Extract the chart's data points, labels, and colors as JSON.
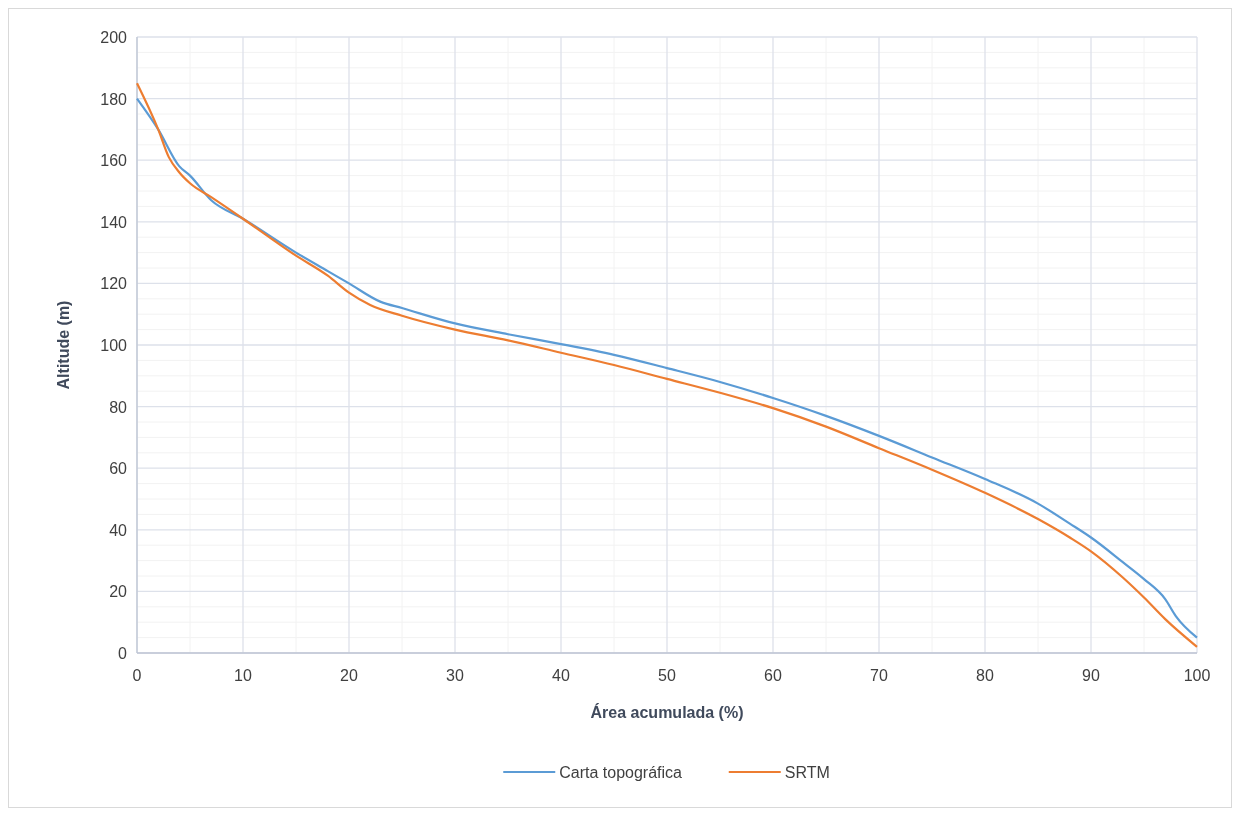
{
  "chart_data": {
    "type": "line",
    "xlabel": "Área acumulada (%)",
    "ylabel": "Altitude (m)",
    "xlim": [
      0,
      100
    ],
    "xticks": [
      0,
      10,
      20,
      30,
      40,
      50,
      60,
      70,
      80,
      90,
      100
    ],
    "ylim": [
      0,
      200
    ],
    "yticks": [
      0,
      20,
      40,
      60,
      80,
      100,
      120,
      140,
      160,
      180,
      200
    ],
    "grid": true,
    "legend": "bottom",
    "series": [
      {
        "name": "Carta topográfica",
        "color": "#5b9bd5",
        "x": [
          0,
          2,
          4,
          5,
          7,
          10,
          15,
          18,
          20,
          23,
          25,
          30,
          35,
          40,
          45,
          50,
          55,
          60,
          65,
          70,
          75,
          80,
          85,
          88,
          90,
          93,
          95,
          97,
          98,
          100
        ],
        "values": [
          180,
          170,
          158,
          155,
          147,
          141,
          130,
          124,
          120,
          114,
          112,
          107,
          103.5,
          100.3,
          96.8,
          92.5,
          88,
          82.8,
          77,
          70.5,
          63.5,
          56.5,
          48.5,
          42,
          37.5,
          29.5,
          24,
          17.5,
          12,
          5
        ]
      },
      {
        "name": "SRTM",
        "color": "#ed7d31",
        "x": [
          0,
          2,
          3,
          4,
          5,
          7,
          10,
          15,
          18,
          20,
          22,
          25,
          30,
          35,
          40,
          45,
          50,
          55,
          60,
          65,
          70,
          75,
          80,
          85,
          88,
          90,
          93,
          95,
          97,
          100
        ],
        "values": [
          185,
          170,
          161,
          156,
          152.5,
          148,
          141,
          129,
          122.5,
          117,
          113,
          109.5,
          105,
          101.5,
          97.5,
          93.5,
          89,
          84.5,
          79.5,
          73.5,
          66.5,
          59.5,
          52,
          43.5,
          37.5,
          33,
          24.5,
          18,
          11,
          2
        ]
      }
    ]
  }
}
